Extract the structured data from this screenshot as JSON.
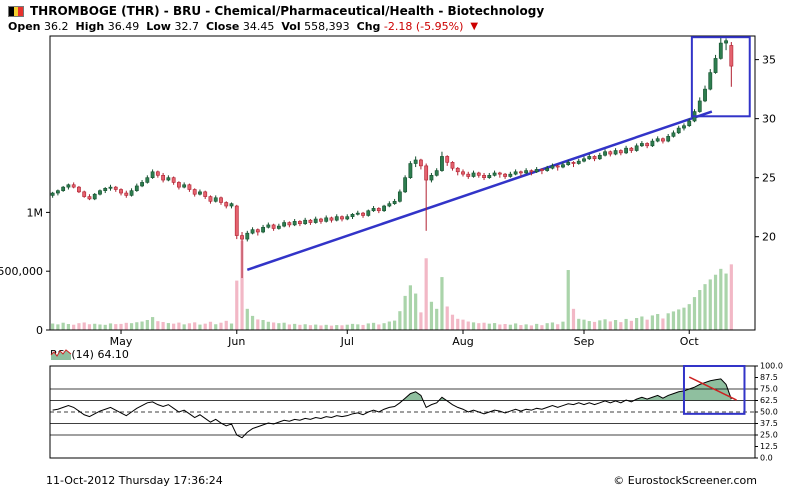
{
  "header": {
    "title": "THROMBOGE (THR) - BRU - Chemical/Pharmaceutical/Health - Biotechnology",
    "stats": [
      {
        "label": "Open",
        "value": "36.2"
      },
      {
        "label": "High",
        "value": "36.49"
      },
      {
        "label": "Low",
        "value": "32.7"
      },
      {
        "label": "Close",
        "value": "34.45"
      },
      {
        "label": "Vol",
        "value": "558,393"
      },
      {
        "label": "Chg",
        "value": "-2.18 (-5.95%)"
      }
    ]
  },
  "icons": {
    "down_triangle": "▼",
    "flag": "belgium-flag",
    "rsi_thumbnail": "area-chart"
  },
  "rsi": {
    "legend": "RSI (14) 64.10"
  },
  "footer": {
    "datetime": "11-Oct-2012 Thursday 17:36:24",
    "copyright": "© EurostockScreener.com"
  },
  "colors": {
    "candle_up": "#2e7d4f",
    "candle_up_stroke": "#14502e",
    "candle_down": "#e4626e",
    "candle_down_stroke": "#b02030",
    "volume_up": "#aad4aa",
    "volume_down": "#f2b8c6",
    "trend_blue": "#3234c8",
    "box_blue": "#3234c8",
    "rsi_fill": "#8fbf9f",
    "rsi_line": "#000000",
    "rsi_red": "#cc2222",
    "change_red": "#cc0000"
  },
  "chart_data": [
    {
      "type": "candlestick",
      "title": "THROMBOGE (THR) daily price with volume",
      "ohlc_format": [
        "open",
        "high",
        "low",
        "close",
        "volume"
      ],
      "x_slots": 134,
      "ylim": [
        12.1,
        37.0
      ],
      "volume_ylim": [
        0,
        2500000
      ],
      "price_ticks": [
        {
          "value": 20,
          "label": "20"
        },
        {
          "value": 25,
          "label": "25"
        },
        {
          "value": 30,
          "label": "30"
        },
        {
          "value": 35,
          "label": "35"
        }
      ],
      "volume_ticks": [
        {
          "value": 0,
          "label": "0"
        },
        {
          "value": 500000,
          "label": "500,000"
        },
        {
          "value": 1000000,
          "label": "1M"
        }
      ],
      "x_axis": {
        "months": [
          {
            "index": 13,
            "label": "May"
          },
          {
            "index": 35,
            "label": "Jun"
          },
          {
            "index": 56,
            "label": "Jul"
          },
          {
            "index": 78,
            "label": "Aug"
          },
          {
            "index": 101,
            "label": "Sep"
          },
          {
            "index": 121,
            "label": "Oct"
          }
        ]
      },
      "trendline": {
        "start_index": 37,
        "start_price": 17.2,
        "end_index": 125.3,
        "end_price": 30.6
      },
      "highlight_box": {
        "start_index": 121.5,
        "end_index": 132.5,
        "price_low": 30.2,
        "price_high": 36.9
      },
      "candles": [
        [
          23.5,
          23.8,
          23.3,
          23.7,
          55000
        ],
        [
          23.7,
          24.0,
          23.5,
          23.9,
          48000
        ],
        [
          23.9,
          24.3,
          23.8,
          24.2,
          62000
        ],
        [
          24.2,
          24.5,
          24.0,
          24.4,
          51000
        ],
        [
          24.4,
          24.6,
          24.1,
          24.2,
          45000
        ],
        [
          24.2,
          24.3,
          23.7,
          23.8,
          58000
        ],
        [
          23.8,
          23.9,
          23.3,
          23.4,
          64000
        ],
        [
          23.4,
          23.6,
          23.1,
          23.2,
          49000
        ],
        [
          23.2,
          23.7,
          23.1,
          23.6,
          53000
        ],
        [
          23.6,
          24.0,
          23.5,
          23.9,
          47000
        ],
        [
          23.9,
          24.2,
          23.7,
          24.1,
          44000
        ],
        [
          24.1,
          24.4,
          23.9,
          24.2,
          56000
        ],
        [
          24.2,
          24.3,
          23.8,
          24.0,
          50000
        ],
        [
          24.0,
          24.1,
          23.5,
          23.7,
          52000
        ],
        [
          23.7,
          23.9,
          23.3,
          23.5,
          61000
        ],
        [
          23.5,
          24.1,
          23.4,
          23.9,
          58000
        ],
        [
          23.9,
          24.5,
          23.8,
          24.3,
          66000
        ],
        [
          24.3,
          24.8,
          24.2,
          24.6,
          72000
        ],
        [
          24.6,
          25.2,
          24.5,
          25.0,
          85000
        ],
        [
          25.0,
          25.7,
          24.9,
          25.5,
          110000
        ],
        [
          25.5,
          25.6,
          25.0,
          25.2,
          75000
        ],
        [
          25.2,
          25.4,
          24.6,
          24.8,
          68000
        ],
        [
          24.8,
          25.2,
          24.7,
          25.0,
          59000
        ],
        [
          25.0,
          25.1,
          24.4,
          24.6,
          54000
        ],
        [
          24.6,
          24.7,
          24.0,
          24.2,
          63000
        ],
        [
          24.2,
          24.6,
          24.1,
          24.4,
          48000
        ],
        [
          24.4,
          24.5,
          23.8,
          24.0,
          57000
        ],
        [
          24.0,
          24.1,
          23.4,
          23.6,
          65000
        ],
        [
          23.6,
          24.0,
          23.5,
          23.8,
          46000
        ],
        [
          23.8,
          23.9,
          23.2,
          23.4,
          54000
        ],
        [
          23.4,
          23.5,
          22.8,
          23.0,
          70000
        ],
        [
          23.0,
          23.5,
          22.9,
          23.3,
          49000
        ],
        [
          23.3,
          23.4,
          22.7,
          22.9,
          62000
        ],
        [
          22.9,
          23.0,
          22.4,
          22.6,
          78000
        ],
        [
          22.6,
          22.9,
          22.4,
          22.8,
          55000
        ],
        [
          22.6,
          22.7,
          19.8,
          20.1,
          420000
        ],
        [
          20.1,
          20.4,
          16.5,
          19.8,
          760000
        ],
        [
          19.8,
          20.5,
          19.6,
          20.3,
          180000
        ],
        [
          20.3,
          20.8,
          20.2,
          20.6,
          120000
        ],
        [
          20.6,
          20.7,
          20.1,
          20.4,
          90000
        ],
        [
          20.4,
          21.0,
          20.3,
          20.8,
          85000
        ],
        [
          20.8,
          21.2,
          20.7,
          21.0,
          70000
        ],
        [
          21.0,
          21.1,
          20.5,
          20.7,
          64000
        ],
        [
          20.7,
          21.1,
          20.6,
          20.9,
          58000
        ],
        [
          20.9,
          21.4,
          20.8,
          21.2,
          62000
        ],
        [
          21.2,
          21.3,
          20.8,
          21.0,
          47000
        ],
        [
          21.0,
          21.5,
          20.9,
          21.3,
          52000
        ],
        [
          21.3,
          21.4,
          20.9,
          21.1,
          44000
        ],
        [
          21.1,
          21.6,
          21.0,
          21.4,
          49000
        ],
        [
          21.4,
          21.5,
          21.0,
          21.2,
          41000
        ],
        [
          21.2,
          21.7,
          21.1,
          21.5,
          46000
        ],
        [
          21.5,
          21.6,
          21.1,
          21.3,
          39000
        ],
        [
          21.3,
          21.8,
          21.2,
          21.6,
          44000
        ],
        [
          21.6,
          21.7,
          21.2,
          21.4,
          37000
        ],
        [
          21.4,
          21.9,
          21.3,
          21.7,
          42000
        ],
        [
          21.7,
          21.8,
          21.3,
          21.5,
          40000
        ],
        [
          21.5,
          21.9,
          21.4,
          21.7,
          45000
        ],
        [
          21.7,
          22.0,
          21.5,
          21.9,
          52000
        ],
        [
          21.9,
          22.2,
          21.8,
          22.0,
          48000
        ],
        [
          22.0,
          22.1,
          21.6,
          21.8,
          43000
        ],
        [
          21.8,
          22.3,
          21.7,
          22.2,
          56000
        ],
        [
          22.2,
          22.6,
          22.1,
          22.4,
          61000
        ],
        [
          22.4,
          22.5,
          22.0,
          22.2,
          47000
        ],
        [
          22.2,
          22.7,
          22.1,
          22.6,
          58000
        ],
        [
          22.6,
          23.0,
          22.5,
          22.8,
          72000
        ],
        [
          22.8,
          23.2,
          22.7,
          23.0,
          80000
        ],
        [
          23.0,
          24.0,
          22.9,
          23.8,
          160000
        ],
        [
          23.8,
          25.2,
          23.7,
          25.0,
          290000
        ],
        [
          25.0,
          26.4,
          24.9,
          26.2,
          380000
        ],
        [
          26.2,
          26.8,
          25.9,
          26.5,
          310000
        ],
        [
          26.5,
          26.6,
          25.7,
          26.0,
          150000
        ],
        [
          26.0,
          26.2,
          20.5,
          24.8,
          610000
        ],
        [
          24.8,
          25.4,
          24.6,
          25.2,
          240000
        ],
        [
          25.2,
          25.8,
          25.1,
          25.6,
          180000
        ],
        [
          25.6,
          27.2,
          25.5,
          26.8,
          450000
        ],
        [
          26.8,
          26.9,
          26.0,
          26.3,
          200000
        ],
        [
          26.3,
          26.4,
          25.6,
          25.8,
          130000
        ],
        [
          25.8,
          25.9,
          25.2,
          25.5,
          95000
        ],
        [
          25.5,
          25.7,
          25.1,
          25.3,
          88000
        ],
        [
          25.3,
          25.5,
          24.9,
          25.1,
          72000
        ],
        [
          25.1,
          25.6,
          25.0,
          25.4,
          65000
        ],
        [
          25.4,
          25.5,
          25.0,
          25.2,
          58000
        ],
        [
          25.2,
          25.4,
          24.8,
          25.0,
          62000
        ],
        [
          25.0,
          25.4,
          24.9,
          25.2,
          54000
        ],
        [
          25.2,
          25.6,
          25.1,
          25.4,
          59000
        ],
        [
          25.4,
          25.5,
          25.0,
          25.3,
          47000
        ],
        [
          25.3,
          25.4,
          24.9,
          25.1,
          51000
        ],
        [
          25.1,
          25.5,
          25.0,
          25.3,
          45000
        ],
        [
          25.3,
          25.7,
          25.2,
          25.5,
          56000
        ],
        [
          25.5,
          25.6,
          25.1,
          25.4,
          42000
        ],
        [
          25.4,
          25.8,
          25.3,
          25.6,
          48000
        ],
        [
          25.6,
          25.7,
          25.2,
          25.5,
          39000
        ],
        [
          25.5,
          25.9,
          25.4,
          25.7,
          52000
        ],
        [
          25.7,
          25.8,
          25.3,
          25.6,
          41000
        ],
        [
          25.6,
          26.0,
          25.5,
          25.8,
          58000
        ],
        [
          25.8,
          26.2,
          25.7,
          26.0,
          64000
        ],
        [
          26.0,
          26.1,
          25.6,
          25.9,
          49000
        ],
        [
          25.9,
          26.3,
          25.8,
          26.1,
          71000
        ],
        [
          26.1,
          26.5,
          26.0,
          26.3,
          510000
        ],
        [
          26.3,
          26.4,
          25.9,
          26.2,
          180000
        ],
        [
          26.2,
          26.6,
          26.1,
          26.4,
          95000
        ],
        [
          26.4,
          26.8,
          26.3,
          26.6,
          88000
        ],
        [
          26.6,
          27.0,
          26.5,
          26.8,
          76000
        ],
        [
          26.8,
          26.9,
          26.4,
          26.6,
          69000
        ],
        [
          26.6,
          27.1,
          26.5,
          26.9,
          82000
        ],
        [
          26.9,
          27.4,
          26.8,
          27.2,
          91000
        ],
        [
          27.2,
          27.3,
          26.8,
          27.0,
          73000
        ],
        [
          27.0,
          27.5,
          26.9,
          27.3,
          85000
        ],
        [
          27.3,
          27.4,
          26.9,
          27.1,
          67000
        ],
        [
          27.1,
          27.7,
          27.0,
          27.5,
          94000
        ],
        [
          27.5,
          27.6,
          27.1,
          27.3,
          78000
        ],
        [
          27.3,
          27.9,
          27.2,
          27.7,
          102000
        ],
        [
          27.7,
          28.1,
          27.6,
          27.9,
          115000
        ],
        [
          27.9,
          28.0,
          27.5,
          27.7,
          88000
        ],
        [
          27.7,
          28.3,
          27.6,
          28.1,
          124000
        ],
        [
          28.1,
          28.5,
          28.0,
          28.3,
          136000
        ],
        [
          28.3,
          28.4,
          27.9,
          28.1,
          98000
        ],
        [
          28.1,
          28.7,
          28.0,
          28.5,
          142000
        ],
        [
          28.5,
          29.0,
          28.4,
          28.8,
          158000
        ],
        [
          28.8,
          29.4,
          28.7,
          29.2,
          175000
        ],
        [
          29.2,
          29.6,
          29.0,
          29.4,
          190000
        ],
        [
          29.4,
          30.0,
          29.3,
          29.8,
          220000
        ],
        [
          29.8,
          30.8,
          29.7,
          30.6,
          280000
        ],
        [
          30.6,
          31.8,
          30.5,
          31.5,
          340000
        ],
        [
          31.5,
          32.8,
          31.4,
          32.5,
          390000
        ],
        [
          32.5,
          34.2,
          32.4,
          33.9,
          430000
        ],
        [
          33.9,
          35.4,
          33.8,
          35.1,
          470000
        ],
        [
          35.1,
          36.9,
          35.0,
          36.4,
          520000
        ],
        [
          36.4,
          36.8,
          35.8,
          36.6,
          480000
        ],
        [
          36.2,
          36.49,
          32.7,
          34.45,
          558393
        ]
      ]
    },
    {
      "type": "line",
      "title": "RSI (14)",
      "current_value": 64.1,
      "ylim": [
        0,
        100
      ],
      "yticks": [
        {
          "value": 100,
          "label": "100.0"
        },
        {
          "value": 87.5,
          "label": "87.5"
        },
        {
          "value": 75,
          "label": "75.0"
        },
        {
          "value": 62.5,
          "label": "62.5"
        },
        {
          "value": 50,
          "label": "50.0"
        },
        {
          "value": 37.5,
          "label": "37.5"
        },
        {
          "value": 25,
          "label": "25.0"
        },
        {
          "value": 12.5,
          "label": "12.5"
        },
        {
          "value": 0,
          "label": "0.0"
        }
      ],
      "gridlines_solid": [
        75,
        62.5,
        37.5,
        25
      ],
      "gridline_dashed": 50,
      "fill_above": 62.5,
      "red_trendline": {
        "start_index": 121,
        "start_value": 88,
        "end_index": 130,
        "end_value": 63
      },
      "highlight_box": {
        "start_index": 120,
        "end_index": 131.5,
        "low": 48,
        "high": 100
      },
      "values": [
        52,
        53,
        55,
        57,
        55,
        51,
        47,
        45,
        48,
        51,
        53,
        55,
        52,
        49,
        46,
        50,
        54,
        57,
        60,
        61,
        58,
        56,
        58,
        54,
        50,
        52,
        48,
        44,
        47,
        43,
        39,
        42,
        38,
        35,
        37,
        25,
        22,
        28,
        32,
        34,
        36,
        38,
        37,
        39,
        41,
        40,
        42,
        41,
        43,
        42,
        44,
        43,
        45,
        44,
        46,
        45,
        46,
        48,
        49,
        47,
        50,
        52,
        50,
        53,
        55,
        56,
        60,
        65,
        70,
        72,
        68,
        55,
        58,
        60,
        66,
        62,
        58,
        55,
        53,
        50,
        52,
        50,
        48,
        50,
        52,
        51,
        49,
        51,
        53,
        51,
        53,
        52,
        54,
        53,
        55,
        57,
        55,
        57,
        59,
        58,
        60,
        58,
        60,
        58,
        60,
        62,
        60,
        62,
        60,
        63,
        61,
        64,
        66,
        64,
        66,
        68,
        65,
        68,
        70,
        72,
        73,
        75,
        77,
        80,
        82,
        84,
        85,
        86,
        80,
        64.1
      ]
    }
  ]
}
